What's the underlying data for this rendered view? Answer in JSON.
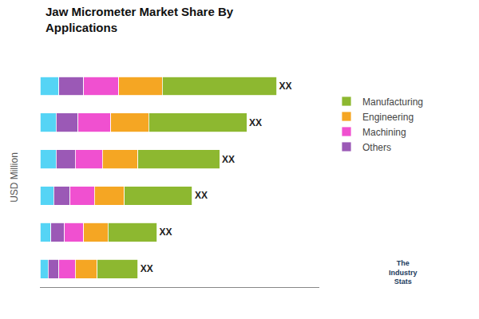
{
  "chart_data": {
    "type": "bar",
    "orientation": "horizontal",
    "stacked": true,
    "title": "Jaw Micrometer Market Share By\nApplications",
    "ylabel": "USD Million",
    "categories": [
      null,
      null,
      null,
      null,
      null,
      null
    ],
    "series": [
      {
        "color": "#55d4f5",
        "values": [
          0.07,
          0.06,
          0.06,
          0.05,
          0.04,
          0.03
        ]
      },
      {
        "name": "Others",
        "color": "#9b59b6",
        "values": [
          0.09,
          0.08,
          0.07,
          0.06,
          0.05,
          0.04
        ]
      },
      {
        "name": "Machining",
        "color": "#f050d0",
        "values": [
          0.13,
          0.12,
          0.1,
          0.09,
          0.07,
          0.06
        ]
      },
      {
        "name": "Engineering",
        "color": "#f5a623",
        "values": [
          0.16,
          0.14,
          0.13,
          0.11,
          0.09,
          0.08
        ]
      },
      {
        "name": "Manufacturing",
        "color": "#8db830",
        "values": [
          0.42,
          0.36,
          0.3,
          0.25,
          0.18,
          0.15
        ]
      }
    ],
    "xlim": [
      0,
      1.0266
    ],
    "xticks": [],
    "tick_labels": false,
    "grid": false,
    "legend": "right",
    "annotations": [
      {
        "text": "XX",
        "category": 0
      },
      {
        "text": "XX",
        "category": 1
      },
      {
        "text": "XX",
        "category": 2
      },
      {
        "text": "XX",
        "category": 3
      },
      {
        "text": "XX",
        "category": 4
      },
      {
        "text": "XX",
        "category": 5
      },
      {
        "text": "The\nIndustry\nStats"
      }
    ]
  }
}
